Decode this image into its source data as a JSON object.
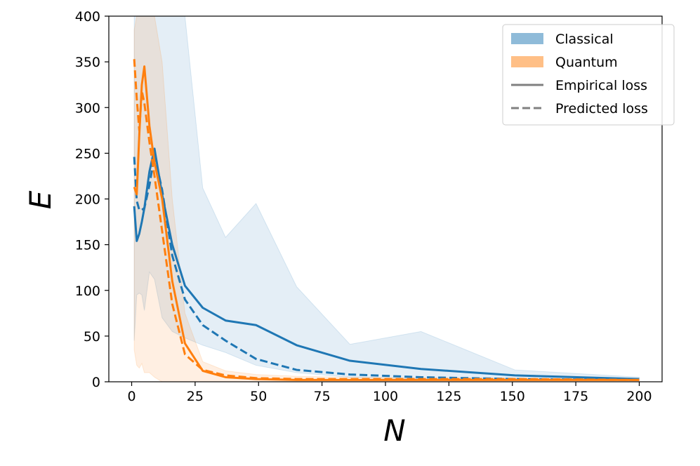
{
  "chart_data": {
    "type": "line",
    "xlabel": "N",
    "ylabel": "E",
    "xlim": [
      -9,
      209
    ],
    "ylim": [
      0,
      400
    ],
    "xticks": [
      0,
      25,
      50,
      75,
      100,
      125,
      150,
      175,
      200
    ],
    "yticks": [
      0,
      50,
      100,
      150,
      200,
      250,
      300,
      350,
      400
    ],
    "legend_position": "top-right",
    "legend": [
      {
        "label": "Classical",
        "kind": "patch",
        "color": "#1f77b4"
      },
      {
        "label": "Quantum",
        "kind": "patch",
        "color": "#ff7f0e"
      },
      {
        "label": "Empirical loss",
        "kind": "solid-line",
        "color": "#808080"
      },
      {
        "label": "Predicted loss",
        "kind": "dashed-line",
        "color": "#808080"
      }
    ],
    "series": [
      {
        "group": "Classical",
        "color": "#1f77b4",
        "x": [
          1,
          2,
          3,
          4,
          5,
          7,
          9,
          12,
          16,
          21,
          28,
          37,
          49,
          65,
          86,
          114,
          151,
          200
        ],
        "empirical": [
          192,
          154,
          162,
          175,
          190,
          230,
          255,
          205,
          150,
          105,
          81,
          67,
          62,
          40,
          23,
          14,
          7,
          3
        ],
        "predicted": [
          246,
          198,
          188,
          188,
          190,
          215,
          248,
          210,
          138,
          90,
          62,
          45,
          25,
          13,
          8,
          5,
          3,
          2
        ],
        "band_upper": [
          400,
          400,
          400,
          400,
          400,
          400,
          400,
          400,
          400,
          400,
          212,
          158,
          195,
          104,
          41,
          55,
          13,
          5
        ],
        "band_lower": [
          45,
          95,
          97,
          95,
          78,
          120,
          112,
          70,
          55,
          48,
          40,
          32,
          18,
          10,
          5,
          3,
          2,
          1
        ]
      },
      {
        "group": "Quantum",
        "color": "#ff7f0e",
        "x": [
          1,
          2,
          3,
          4,
          5,
          7,
          9,
          12,
          16,
          21,
          28,
          37,
          49,
          65,
          86,
          114,
          151,
          200
        ],
        "empirical": [
          213,
          205,
          270,
          325,
          345,
          280,
          240,
          200,
          110,
          42,
          12,
          5,
          3,
          2,
          2,
          2,
          2,
          2
        ],
        "predicted": [
          353,
          310,
          275,
          318,
          305,
          262,
          225,
          165,
          85,
          30,
          13,
          7,
          4,
          3,
          3,
          3,
          3,
          2
        ],
        "band_upper": [
          385,
          400,
          400,
          400,
          400,
          400,
          400,
          350,
          200,
          75,
          22,
          12,
          8,
          6,
          5,
          4,
          4,
          3
        ],
        "band_lower": [
          35,
          18,
          15,
          20,
          10,
          10,
          5,
          0,
          0,
          0,
          0,
          0,
          0,
          0,
          0,
          0,
          0,
          0
        ]
      }
    ]
  }
}
